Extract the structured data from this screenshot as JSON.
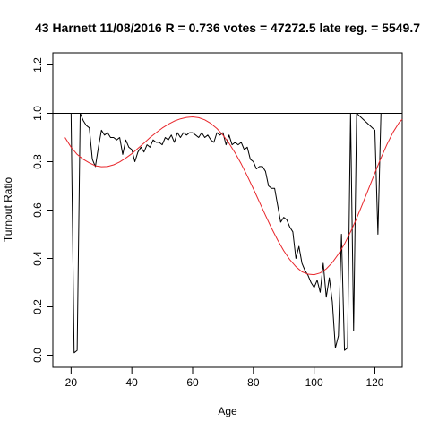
{
  "chart_data": {
    "type": "line",
    "title": "43 Harnett 11/08/2016 R = 0.736 votes = 47272.5 late reg. = 5549.7",
    "xlabel": "Age",
    "ylabel": "Turnout Ratio",
    "xlim": [
      14,
      129
    ],
    "ylim": [
      -0.05,
      1.25
    ],
    "x_ticks": [
      20,
      40,
      60,
      80,
      100,
      120
    ],
    "y_ticks": [
      0.0,
      0.2,
      0.4,
      0.6,
      0.8,
      1.0,
      1.2
    ],
    "x_tick_labels": [
      "20",
      "40",
      "60",
      "80",
      "100",
      "120"
    ],
    "y_tick_labels": [
      "0.0",
      "0.2",
      "0.4",
      "0.6",
      "0.8",
      "1.0",
      "1.2"
    ],
    "reference_line": {
      "y": 1.0,
      "color": "#000000"
    },
    "grid": false,
    "series": [
      {
        "color": "#000000",
        "points": [
          [
            20,
            1.0
          ],
          [
            21,
            0.01
          ],
          [
            22,
            0.02
          ],
          [
            23,
            1.0
          ],
          [
            24,
            0.97
          ],
          [
            25,
            0.95
          ],
          [
            26,
            0.94
          ],
          [
            27,
            0.81
          ],
          [
            28,
            0.78
          ],
          [
            29,
            0.86
          ],
          [
            30,
            0.93
          ],
          [
            31,
            0.91
          ],
          [
            32,
            0.92
          ],
          [
            33,
            0.9
          ],
          [
            34,
            0.9
          ],
          [
            35,
            0.89
          ],
          [
            36,
            0.9
          ],
          [
            37,
            0.83
          ],
          [
            38,
            0.89
          ],
          [
            39,
            0.86
          ],
          [
            40,
            0.85
          ],
          [
            41,
            0.8
          ],
          [
            42,
            0.84
          ],
          [
            43,
            0.86
          ],
          [
            44,
            0.84
          ],
          [
            45,
            0.87
          ],
          [
            46,
            0.86
          ],
          [
            47,
            0.89
          ],
          [
            48,
            0.88
          ],
          [
            49,
            0.88
          ],
          [
            50,
            0.87
          ],
          [
            51,
            0.9
          ],
          [
            52,
            0.89
          ],
          [
            53,
            0.91
          ],
          [
            54,
            0.88
          ],
          [
            55,
            0.92
          ],
          [
            56,
            0.9
          ],
          [
            57,
            0.92
          ],
          [
            58,
            0.91
          ],
          [
            59,
            0.92
          ],
          [
            60,
            0.92
          ],
          [
            61,
            0.91
          ],
          [
            62,
            0.9
          ],
          [
            63,
            0.92
          ],
          [
            64,
            0.9
          ],
          [
            65,
            0.91
          ],
          [
            66,
            0.89
          ],
          [
            67,
            0.88
          ],
          [
            68,
            0.92
          ],
          [
            69,
            0.91
          ],
          [
            70,
            0.92
          ],
          [
            71,
            0.87
          ],
          [
            72,
            0.91
          ],
          [
            73,
            0.87
          ],
          [
            74,
            0.88
          ],
          [
            75,
            0.87
          ],
          [
            76,
            0.88
          ],
          [
            77,
            0.85
          ],
          [
            78,
            0.86
          ],
          [
            79,
            0.81
          ],
          [
            80,
            0.8
          ],
          [
            81,
            0.77
          ],
          [
            82,
            0.78
          ],
          [
            83,
            0.78
          ],
          [
            84,
            0.76
          ],
          [
            85,
            0.7
          ],
          [
            86,
            0.69
          ],
          [
            87,
            0.69
          ],
          [
            88,
            0.62
          ],
          [
            89,
            0.55
          ],
          [
            90,
            0.57
          ],
          [
            91,
            0.56
          ],
          [
            92,
            0.53
          ],
          [
            93,
            0.51
          ],
          [
            94,
            0.4
          ],
          [
            95,
            0.45
          ],
          [
            96,
            0.38
          ],
          [
            97,
            0.35
          ],
          [
            98,
            0.33
          ],
          [
            99,
            0.3
          ],
          [
            100,
            0.28
          ],
          [
            101,
            0.31
          ],
          [
            102,
            0.26
          ],
          [
            103,
            0.38
          ],
          [
            104,
            0.24
          ],
          [
            105,
            0.32
          ],
          [
            106,
            0.22
          ],
          [
            107,
            0.03
          ],
          [
            108,
            0.08
          ],
          [
            109,
            0.5
          ],
          [
            110,
            0.02
          ],
          [
            111,
            0.03
          ],
          [
            112,
            1.0
          ],
          [
            113,
            0.1
          ],
          [
            114,
            1.0
          ],
          [
            120,
            0.93
          ],
          [
            121,
            0.5
          ],
          [
            122,
            1.0
          ]
        ]
      },
      {
        "color": "#e8262b",
        "points": [
          [
            18,
            0.9
          ],
          [
            20,
            0.86
          ],
          [
            22,
            0.83
          ],
          [
            24,
            0.81
          ],
          [
            26,
            0.795
          ],
          [
            28,
            0.783
          ],
          [
            30,
            0.779
          ],
          [
            32,
            0.78
          ],
          [
            34,
            0.787
          ],
          [
            36,
            0.799
          ],
          [
            38,
            0.815
          ],
          [
            40,
            0.833
          ],
          [
            42,
            0.855
          ],
          [
            44,
            0.877
          ],
          [
            46,
            0.9
          ],
          [
            48,
            0.92
          ],
          [
            50,
            0.939
          ],
          [
            52,
            0.955
          ],
          [
            54,
            0.968
          ],
          [
            56,
            0.977
          ],
          [
            58,
            0.983
          ],
          [
            60,
            0.985
          ],
          [
            62,
            0.982
          ],
          [
            64,
            0.973
          ],
          [
            66,
            0.958
          ],
          [
            68,
            0.937
          ],
          [
            70,
            0.91
          ],
          [
            72,
            0.876
          ],
          [
            74,
            0.836
          ],
          [
            76,
            0.791
          ],
          [
            78,
            0.741
          ],
          [
            80,
            0.688
          ],
          [
            82,
            0.633
          ],
          [
            84,
            0.578
          ],
          [
            86,
            0.525
          ],
          [
            88,
            0.476
          ],
          [
            90,
            0.432
          ],
          [
            92,
            0.395
          ],
          [
            94,
            0.366
          ],
          [
            96,
            0.345
          ],
          [
            98,
            0.335
          ],
          [
            100,
            0.333
          ],
          [
            102,
            0.34
          ],
          [
            104,
            0.357
          ],
          [
            106,
            0.383
          ],
          [
            108,
            0.418
          ],
          [
            110,
            0.46
          ],
          [
            112,
            0.51
          ],
          [
            114,
            0.566
          ],
          [
            116,
            0.627
          ],
          [
            118,
            0.69
          ],
          [
            120,
            0.753
          ],
          [
            122,
            0.815
          ],
          [
            124,
            0.872
          ],
          [
            126,
            0.922
          ],
          [
            128,
            0.962
          ],
          [
            129,
            0.975
          ]
        ]
      }
    ]
  }
}
